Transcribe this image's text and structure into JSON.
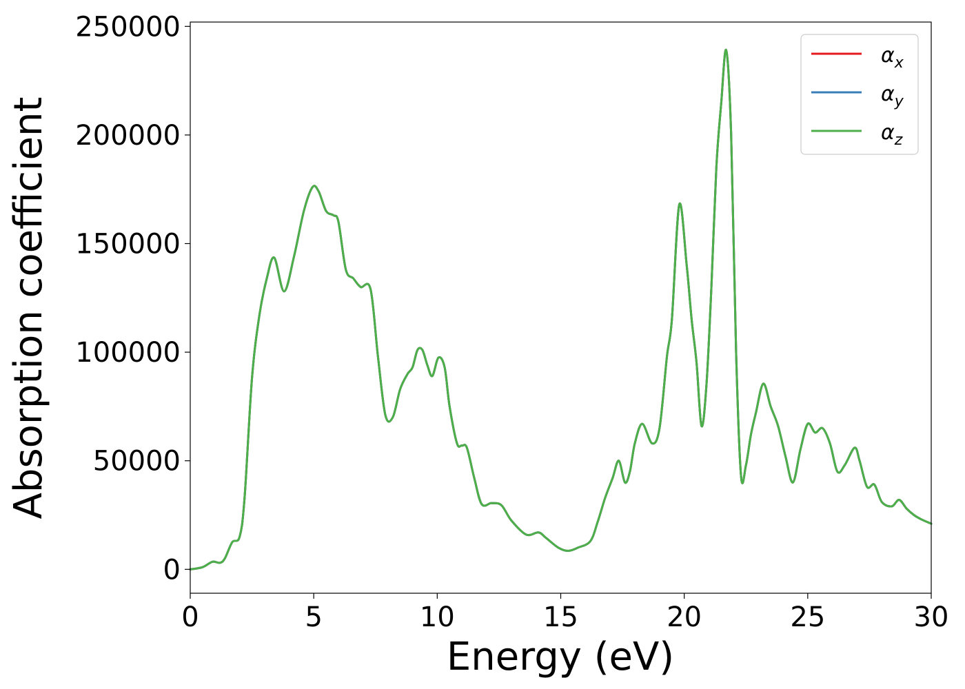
{
  "chart_data": {
    "type": "line",
    "xlabel": "Energy (eV)",
    "ylabel": "Absorption coefficient",
    "xlim": [
      0,
      30
    ],
    "ylim": [
      -11000,
      252000
    ],
    "xticks": [
      0,
      5,
      10,
      15,
      20,
      25,
      30
    ],
    "yticks": [
      0,
      50000,
      100000,
      150000,
      200000,
      250000
    ],
    "grid": false,
    "legend_position": "top-right",
    "series": [
      {
        "name": "α",
        "subscript": "x",
        "color": "#e41a1c",
        "visible": false
      },
      {
        "name": "α",
        "subscript": "y",
        "color": "#377eb8",
        "visible": false
      },
      {
        "name": "α",
        "subscript": "z",
        "color": "#4daf4a",
        "visible": true
      }
    ],
    "x": [
      0,
      0.5,
      0.9,
      1.2,
      1.4,
      1.7,
      2.0,
      2.2,
      2.5,
      2.8,
      3.1,
      3.4,
      3.8,
      4.2,
      4.6,
      4.95,
      5.2,
      5.5,
      5.8,
      6.0,
      6.3,
      6.6,
      6.9,
      7.3,
      7.6,
      7.9,
      8.2,
      8.5,
      8.8,
      9.0,
      9.2,
      9.4,
      9.6,
      9.8,
      10.05,
      10.3,
      10.5,
      10.8,
      11.0,
      11.2,
      11.5,
      11.8,
      12.2,
      12.6,
      13.0,
      13.6,
      14.1,
      14.4,
      14.9,
      15.3,
      15.7,
      16.2,
      16.5,
      16.8,
      17.1,
      17.35,
      17.6,
      17.8,
      18.0,
      18.3,
      18.7,
      19.0,
      19.3,
      19.5,
      19.8,
      20.1,
      20.3,
      20.5,
      20.7,
      20.9,
      21.1,
      21.3,
      21.5,
      21.7,
      21.9,
      22.1,
      22.3,
      22.5,
      22.7,
      22.9,
      23.2,
      23.5,
      23.8,
      24.1,
      24.4,
      24.7,
      25.0,
      25.3,
      25.6,
      25.9,
      26.2,
      26.5,
      26.9,
      27.1,
      27.4,
      27.7,
      28.0,
      28.4,
      28.7,
      29.0,
      29.3,
      29.6,
      30
    ]
  },
  "series_values": [
    0,
    1000,
    3500,
    3000,
    5000,
    12500,
    15000,
    33000,
    88000,
    117000,
    134000,
    143500,
    128000,
    144000,
    165000,
    176000,
    174000,
    165000,
    163000,
    160000,
    138000,
    134000,
    130000,
    129000,
    98000,
    71000,
    70000,
    83000,
    90000,
    93000,
    101000,
    101000,
    94000,
    89000,
    97500,
    93000,
    75000,
    58000,
    57000,
    56000,
    42000,
    30000,
    30500,
    29500,
    22500,
    16000,
    17000,
    14500,
    10000,
    8500,
    10000,
    13000,
    22000,
    33000,
    42000,
    50000,
    40000,
    45000,
    58000,
    67000,
    58000,
    65000,
    98000,
    115000,
    168000,
    140000,
    115000,
    95000,
    66000,
    85000,
    130000,
    185000,
    215000,
    239000,
    200000,
    100000,
    43000,
    48000,
    62000,
    72000,
    85500,
    75000,
    66000,
    52000,
    40000,
    55000,
    67000,
    63000,
    65000,
    58000,
    45000,
    48000,
    56000,
    50000,
    38000,
    39000,
    31000,
    29000,
    32000,
    28000,
    25000,
    23000,
    21000
  ]
}
